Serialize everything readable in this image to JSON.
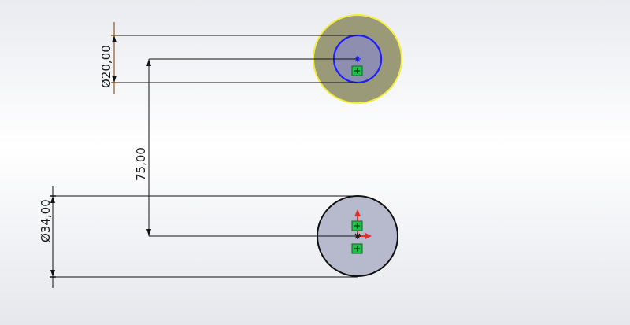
{
  "sketch": {
    "dimensions": {
      "top_circle_diameter": "Ø20,00",
      "center_distance": "75,00",
      "bottom_circle_diameter": "Ø34,00"
    },
    "colors": {
      "background_top": "#e9ebf0",
      "background_bottom": "#e6e7ec",
      "selected_face_fill": "#9a9a78",
      "selected_edge": "#f2ee3a",
      "sketch_circle": "#1e1eff",
      "circle_fill": "#b7b9cc",
      "circle_edge": "#111111",
      "dimension_line": "#111111",
      "extension_witness": "#8a5a2a",
      "relation_marker": "#22c04a",
      "origin_axis": "#e03030"
    },
    "icons": {
      "center_point": "asterisk",
      "coincident_relation": "green-square-relation-icon",
      "origin": "origin-arrows-icon"
    }
  }
}
